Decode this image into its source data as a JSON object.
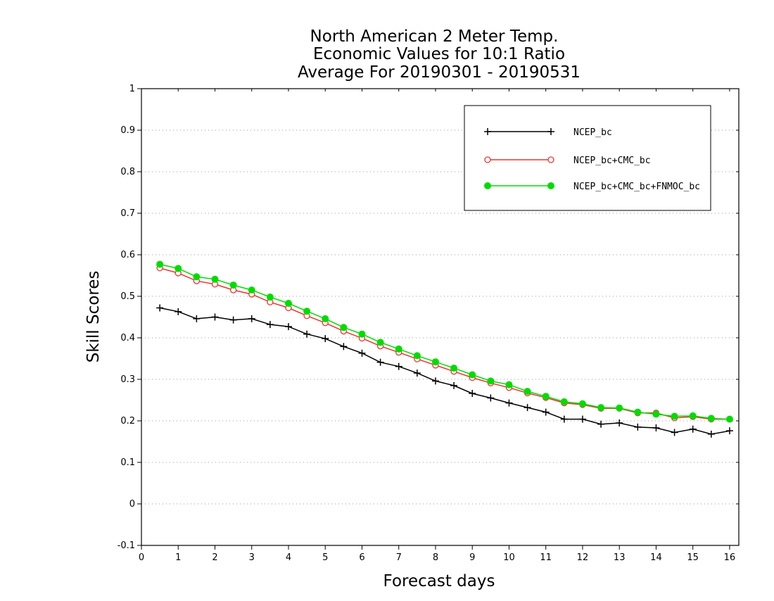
{
  "chart_data": {
    "type": "line",
    "title": [
      "North American 2 Meter Temp.",
      "Economic Values for 10:1 Ratio",
      "Average For 20190301 - 20190531"
    ],
    "xlabel": "Forecast days",
    "ylabel": "Skill Scores",
    "xlim": [
      0,
      16.25
    ],
    "ylim": [
      -0.1,
      1
    ],
    "xticks": [
      0,
      1,
      2,
      3,
      4,
      5,
      6,
      7,
      8,
      9,
      10,
      11,
      12,
      13,
      14,
      15,
      16
    ],
    "yticks": [
      -0.1,
      0,
      0.1,
      0.2,
      0.3,
      0.4,
      0.5,
      0.6,
      0.7,
      0.8,
      0.9,
      1
    ],
    "ytick_labels": [
      "-0.1",
      "0",
      "0.1",
      "0.2",
      "0.3",
      "0.4",
      "0.5",
      "0.6",
      "0.7",
      "0.8",
      "0.9",
      "1"
    ],
    "grid": "horizontal dotted",
    "legend_position": "top-right",
    "x": [
      0.5,
      1,
      1.5,
      2,
      2.5,
      3,
      3.5,
      4,
      4.5,
      5,
      5.5,
      6,
      6.5,
      7,
      7.5,
      8,
      8.5,
      9,
      9.5,
      10,
      10.5,
      11,
      11.5,
      12,
      12.5,
      13,
      13.5,
      14,
      14.5,
      15,
      15.5,
      16
    ],
    "series": [
      {
        "name": "NCEP_bc",
        "color": "#000000",
        "marker": "plus",
        "values": [
          0.472,
          0.463,
          0.446,
          0.45,
          0.443,
          0.446,
          0.432,
          0.427,
          0.409,
          0.398,
          0.379,
          0.363,
          0.341,
          0.331,
          0.315,
          0.296,
          0.285,
          0.266,
          0.255,
          0.243,
          0.232,
          0.221,
          0.204,
          0.204,
          0.192,
          0.195,
          0.185,
          0.183,
          0.172,
          0.18,
          0.168,
          0.176
        ]
      },
      {
        "name": "NCEP_bc+CMC_bc",
        "color": "#ee3333",
        "marker": "open-circle",
        "values": [
          0.568,
          0.556,
          0.537,
          0.529,
          0.515,
          0.505,
          0.486,
          0.472,
          0.453,
          0.436,
          0.416,
          0.399,
          0.38,
          0.365,
          0.349,
          0.334,
          0.319,
          0.304,
          0.291,
          0.28,
          0.267,
          0.256,
          0.243,
          0.239,
          0.23,
          0.23,
          0.219,
          0.219,
          0.207,
          0.21,
          0.204,
          0.204
        ]
      },
      {
        "name": "NCEP_bc+CMC_bc+FNMOC_bc",
        "color": "#00dd00",
        "marker": "filled-circle",
        "values": [
          0.577,
          0.567,
          0.547,
          0.541,
          0.527,
          0.515,
          0.498,
          0.483,
          0.464,
          0.446,
          0.425,
          0.409,
          0.389,
          0.373,
          0.357,
          0.342,
          0.327,
          0.311,
          0.296,
          0.287,
          0.271,
          0.259,
          0.246,
          0.241,
          0.232,
          0.231,
          0.221,
          0.216,
          0.211,
          0.212,
          0.206,
          0.204
        ]
      }
    ]
  }
}
